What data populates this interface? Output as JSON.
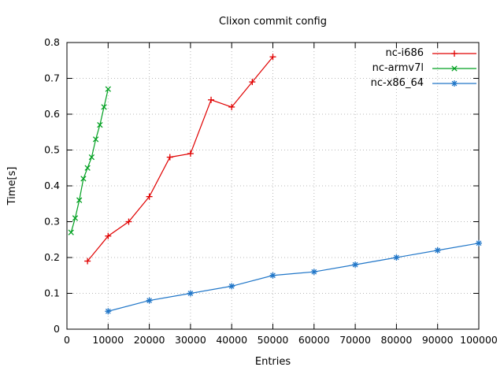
{
  "chart_data": {
    "type": "line",
    "title": "Clixon commit config",
    "xlabel": "Entries",
    "ylabel": "Time[s]",
    "xlim": [
      0,
      100000
    ],
    "ylim": [
      0,
      0.8
    ],
    "grid": true,
    "legend_position": "top-right-inside",
    "background_color": "#ffffff",
    "x_ticks": {
      "values": [
        0,
        10000,
        20000,
        30000,
        40000,
        50000,
        60000,
        70000,
        80000,
        90000,
        100000
      ],
      "labels": [
        "0",
        "10000",
        "20000",
        "30000",
        "40000",
        "50000",
        "60000",
        "70000",
        "80000",
        "90000",
        "100000"
      ]
    },
    "y_ticks": {
      "values": [
        0,
        0.1,
        0.2,
        0.3,
        0.4,
        0.5,
        0.6,
        0.7,
        0.8
      ],
      "labels": [
        "0",
        "0.1",
        "0.2",
        "0.3",
        "0.4",
        "0.5",
        "0.6",
        "0.7",
        "0.8"
      ]
    },
    "series": [
      {
        "name": "nc-i686",
        "color": "#e00000",
        "marker": "plus",
        "x": [
          5000,
          10000,
          15000,
          20000,
          25000,
          30000,
          35000,
          40000,
          45000,
          50000
        ],
        "y": [
          0.19,
          0.26,
          0.3,
          0.37,
          0.48,
          0.49,
          0.64,
          0.62,
          0.69,
          0.76
        ]
      },
      {
        "name": "nc-armv7l",
        "color": "#00a020",
        "marker": "cross",
        "x": [
          1000,
          2000,
          3000,
          4000,
          5000,
          6000,
          7000,
          8000,
          9000,
          10000
        ],
        "y": [
          0.27,
          0.31,
          0.36,
          0.42,
          0.45,
          0.48,
          0.53,
          0.57,
          0.62,
          0.67
        ]
      },
      {
        "name": "nc-x86_64",
        "color": "#2076c8",
        "marker": "asterisk",
        "x": [
          10000,
          20000,
          30000,
          40000,
          50000,
          60000,
          70000,
          80000,
          90000,
          100000
        ],
        "y": [
          0.05,
          0.08,
          0.1,
          0.12,
          0.15,
          0.16,
          0.18,
          0.2,
          0.22,
          0.24
        ]
      }
    ]
  }
}
